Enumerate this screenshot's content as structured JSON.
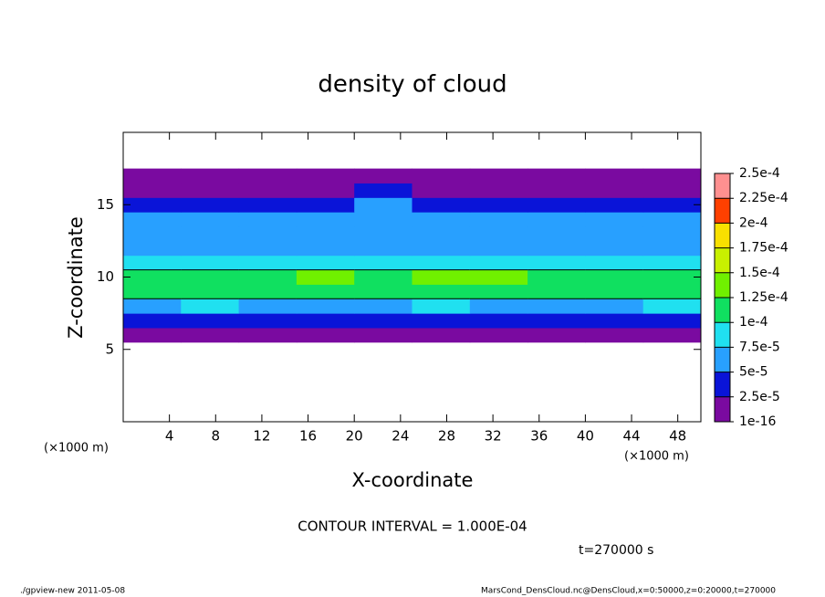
{
  "chart_data": {
    "type": "heatmap",
    "title": "density of cloud",
    "xlabel": "X-coordinate",
    "ylabel": "Z-coordinate",
    "x_unit": "(×1000 m)",
    "y_unit": "(×1000 m)",
    "xlim": [
      0,
      50
    ],
    "xticks": [
      4,
      8,
      12,
      16,
      20,
      24,
      28,
      32,
      36,
      40,
      44,
      48
    ],
    "ylim": [
      0,
      20
    ],
    "yticks": [
      5,
      10,
      15
    ],
    "xbins": [
      0,
      5,
      10,
      15,
      20,
      25,
      30,
      35,
      40,
      45,
      50
    ],
    "zbins": [
      5.5,
      6.5,
      7.5,
      8.5,
      9.5,
      10.5,
      11.5,
      12.5,
      13.5,
      14.5,
      15.5,
      16.5,
      17.5
    ],
    "values": [
      [
        1e-05,
        1e-05,
        1e-05,
        1e-05,
        1e-05,
        1e-05,
        1e-05,
        1e-05,
        1e-05,
        1e-05
      ],
      [
        3e-05,
        3e-05,
        4e-05,
        3e-05,
        3e-05,
        3e-05,
        3e-05,
        3e-05,
        3e-05,
        3e-05
      ],
      [
        7e-05,
        8e-05,
        7e-05,
        7e-05,
        7e-05,
        8e-05,
        7e-05,
        6e-05,
        7e-05,
        8e-05
      ],
      [
        0.00011,
        0.00011,
        0.0001,
        0.00012,
        0.00011,
        0.00012,
        0.00011,
        0.0001,
        0.0001,
        0.00011
      ],
      [
        0.00012,
        0.00011,
        0.00012,
        0.00013,
        0.00012,
        0.00013,
        0.00013,
        0.00011,
        0.00011,
        0.00012
      ],
      [
        9e-05,
        9e-05,
        8e-05,
        9e-05,
        8e-05,
        9e-05,
        9e-05,
        8e-05,
        8e-05,
        9e-05
      ],
      [
        7e-05,
        7e-05,
        6e-05,
        6e-05,
        6e-05,
        7e-05,
        7e-05,
        7e-05,
        7e-05,
        7e-05
      ],
      [
        6e-05,
        6e-05,
        6e-05,
        6e-05,
        7e-05,
        6e-05,
        6e-05,
        6e-05,
        6e-05,
        6e-05
      ],
      [
        5e-05,
        5e-05,
        5e-05,
        5e-05,
        6e-05,
        5e-05,
        5e-05,
        5e-05,
        5e-05,
        5e-05
      ],
      [
        4e-05,
        4e-05,
        4e-05,
        4e-05,
        5e-05,
        4e-05,
        4e-05,
        4e-05,
        4e-05,
        4e-05
      ],
      [
        2e-05,
        2e-05,
        2e-05,
        2e-05,
        3e-05,
        2e-05,
        2e-05,
        2e-05,
        2e-05,
        2e-05
      ],
      [
        1e-05,
        1e-05,
        1e-05,
        1e-05,
        1e-05,
        1e-05,
        1e-05,
        1e-05,
        1e-05,
        1e-05
      ]
    ],
    "levels": [
      {
        "value": 1e-16,
        "label": "1e-16"
      },
      {
        "value": 2.5e-05,
        "label": "2.5e-5"
      },
      {
        "value": 5e-05,
        "label": "5e-5"
      },
      {
        "value": 7.5e-05,
        "label": "7.5e-5"
      },
      {
        "value": 0.0001,
        "label": "1e-4"
      },
      {
        "value": 0.000125,
        "label": "1.25e-4"
      },
      {
        "value": 0.00015,
        "label": "1.5e-4"
      },
      {
        "value": 0.000175,
        "label": "1.75e-4"
      },
      {
        "value": 0.0002,
        "label": "2e-4"
      },
      {
        "value": 0.000225,
        "label": "2.25e-4"
      },
      {
        "value": 0.00025,
        "label": "2.5e-4"
      }
    ],
    "colors": [
      "#7a0aa0",
      "#0a14d8",
      "#28a0ff",
      "#20e0f0",
      "#10e060",
      "#70f000",
      "#c8f000",
      "#f8e000",
      "#ff4000",
      "#ff9090"
    ],
    "contour_interval": {
      "value": 0.0001,
      "label": "CONTOUR INTERVAL = 1.000E-04"
    },
    "time_label": "t=270000 s",
    "footer_left": "./gpview-new   2011-05-08",
    "footer_right": "MarsCond_DensCloud.nc@DensCloud,x=0:50000,z=0:20000,t=270000"
  }
}
